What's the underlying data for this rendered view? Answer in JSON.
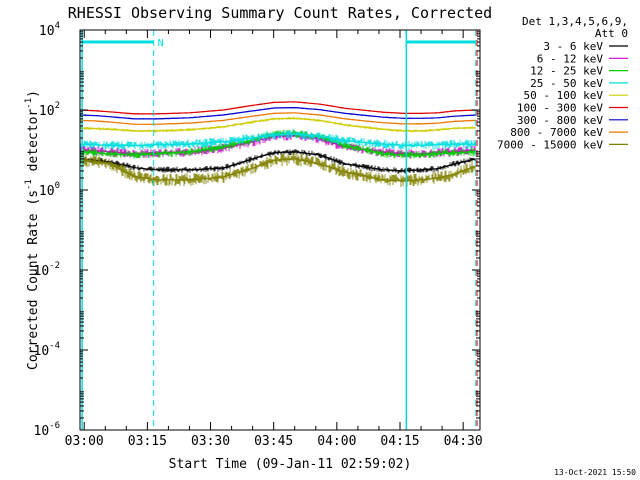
{
  "chart_data": {
    "type": "line",
    "title": "RHESSI Observing Summary Count Rates, Corrected",
    "xlabel": "Start Time (09-Jan-11 02:59:02)",
    "ylabel_main": "Corrected Count Rate (s",
    "ylabel_sup": "-1",
    "ylabel_mid": " detector",
    "ylabel_end": ")",
    "y_scale": "log",
    "ylim": [
      1e-06,
      10000.0
    ],
    "x_range_minutes": [
      179,
      274
    ],
    "x_ticks": [
      {
        "label": "03:00",
        "minute": 180
      },
      {
        "label": "03:15",
        "minute": 195
      },
      {
        "label": "03:30",
        "minute": 210
      },
      {
        "label": "03:45",
        "minute": 225
      },
      {
        "label": "04:00",
        "minute": 240
      },
      {
        "label": "04:15",
        "minute": 255
      },
      {
        "label": "04:30",
        "minute": 270
      }
    ],
    "y_ticks": [
      {
        "exp": 4,
        "base": "10",
        "sup": "4"
      },
      {
        "exp": 2,
        "base": "10",
        "sup": "2"
      },
      {
        "exp": 0,
        "base": "10",
        "sup": "0"
      },
      {
        "exp": -2,
        "base": "10",
        "sup": "-2"
      },
      {
        "exp": -4,
        "base": "10",
        "sup": "-4"
      },
      {
        "exp": -6,
        "base": "10",
        "sup": "-6"
      }
    ],
    "legend_header": [
      "Det 1,3,4,5,6,9,",
      "Att 0"
    ],
    "legend_position": "right",
    "series": [
      {
        "name": "3 - 6 keV",
        "color": "#000000",
        "x": [
          179,
          183,
          186,
          192,
          197,
          205,
          213,
          220,
          225,
          230,
          236,
          242,
          251,
          256,
          260,
          264,
          268,
          273
        ],
        "y": [
          6,
          5.5,
          5,
          3.6,
          3.2,
          3.2,
          3.5,
          6,
          8.5,
          9,
          7.5,
          4.5,
          3.2,
          3.0,
          3.2,
          3.4,
          4.5,
          6
        ]
      },
      {
        "name": "6 - 12 keV",
        "color": "#cc00cc",
        "x": [
          179,
          183,
          186,
          192,
          197,
          205,
          213,
          220,
          225,
          230,
          236,
          242,
          251,
          256,
          260,
          264,
          268,
          273
        ],
        "y": [
          10,
          9.5,
          9,
          8,
          8.5,
          9,
          11,
          16,
          22,
          23,
          19,
          12,
          9,
          8,
          8,
          8.5,
          9,
          10
        ]
      },
      {
        "name": "12 - 25 keV",
        "color": "#00cc00",
        "x": [
          179,
          183,
          186,
          192,
          197,
          205,
          213,
          220,
          225,
          230,
          236,
          242,
          251,
          256,
          260,
          264,
          268,
          273
        ],
        "y": [
          9,
          8.5,
          8,
          7.5,
          8,
          9,
          12,
          18,
          25,
          26,
          21,
          13,
          8,
          7.5,
          7.5,
          8,
          8.5,
          9
        ]
      },
      {
        "name": "25 - 50 keV",
        "color": "#00dddd",
        "x": [
          179,
          183,
          186,
          192,
          197,
          205,
          213,
          220,
          225,
          230,
          236,
          242,
          251,
          256,
          260,
          264,
          268,
          273
        ],
        "y": [
          14,
          13.5,
          13,
          13,
          13.5,
          14,
          16,
          20,
          24,
          25,
          22,
          17,
          14,
          13,
          13,
          13.5,
          14,
          14
        ]
      },
      {
        "name": "50 - 100 keV",
        "color": "#cccc00",
        "x": [
          179,
          183,
          186,
          192,
          197,
          205,
          213,
          220,
          225,
          230,
          236,
          242,
          251,
          256,
          260,
          264,
          268,
          273
        ],
        "y": [
          35,
          34,
          33,
          30,
          30,
          32,
          38,
          50,
          60,
          62,
          55,
          42,
          33,
          30,
          30,
          32,
          35,
          36
        ]
      },
      {
        "name": "100 - 300 keV",
        "color": "#dd0000",
        "x": [
          179,
          183,
          186,
          192,
          197,
          205,
          213,
          220,
          225,
          230,
          236,
          242,
          251,
          256,
          260,
          264,
          268,
          273
        ],
        "y": [
          100,
          95,
          90,
          80,
          80,
          85,
          100,
          130,
          155,
          160,
          140,
          110,
          88,
          82,
          82,
          85,
          95,
          100
        ]
      },
      {
        "name": "300 - 800 keV",
        "color": "#0000cc",
        "x": [
          179,
          183,
          186,
          192,
          197,
          205,
          213,
          220,
          225,
          230,
          236,
          242,
          251,
          256,
          260,
          264,
          268,
          273
        ],
        "y": [
          75,
          72,
          68,
          60,
          60,
          64,
          75,
          95,
          112,
          115,
          102,
          82,
          66,
          62,
          62,
          64,
          70,
          75
        ]
      },
      {
        "name": "800 - 7000 keV",
        "color": "#ee7700",
        "x": [
          179,
          183,
          186,
          192,
          197,
          205,
          213,
          220,
          225,
          230,
          236,
          242,
          251,
          256,
          260,
          264,
          268,
          273
        ],
        "y": [
          55,
          53,
          50,
          44,
          44,
          47,
          55,
          70,
          82,
          85,
          75,
          60,
          48,
          45,
          45,
          47,
          52,
          55
        ]
      },
      {
        "name": "7000 - 15000 keV",
        "color": "#808000",
        "x": [
          179,
          183,
          186,
          192,
          197,
          205,
          213,
          220,
          225,
          230,
          236,
          242,
          251,
          256,
          260,
          264,
          268,
          273
        ],
        "y": [
          5.5,
          5,
          4.5,
          2.2,
          1.8,
          1.8,
          2.1,
          3.5,
          5.5,
          6,
          4.5,
          2.8,
          1.8,
          1.7,
          1.8,
          2.0,
          2.5,
          4
        ]
      }
    ],
    "night_spans": [
      {
        "label": "N",
        "start": 179.5,
        "end": 196.5
      },
      {
        "label": "",
        "start": 256.5,
        "end": 273
      }
    ],
    "dashed_markers": [
      {
        "minute": 196.5,
        "color": "#00dddd"
      },
      {
        "minute": 273,
        "color": "#00dddd"
      },
      {
        "minute": 273.3,
        "color": "#ff0000"
      }
    ],
    "solid_markers": [
      {
        "minute": 179.5,
        "color": "#00dddd"
      },
      {
        "minute": 256.5,
        "color": "#00dddd"
      }
    ],
    "colors": {
      "axis": "#000000",
      "night": "#00dddd",
      "attenuator": "#ff0000"
    }
  },
  "footer": {
    "timestamp": "13-Oct-2021 15:50"
  }
}
